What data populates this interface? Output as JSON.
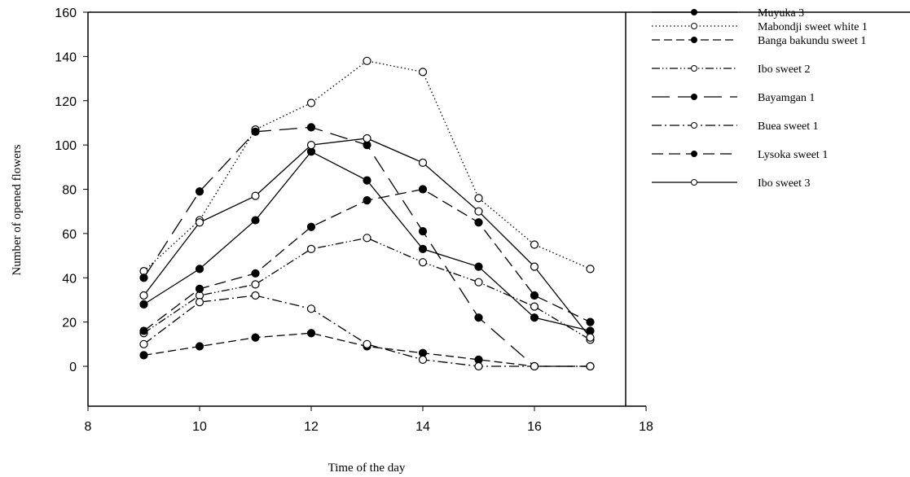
{
  "chart_data": {
    "type": "line",
    "title": "",
    "xlabel": "Time of the day",
    "ylabel": "Number of opened flowers",
    "xlim": [
      8,
      18
    ],
    "ylim": [
      -18,
      160
    ],
    "xticks": [
      8,
      10,
      12,
      14,
      16,
      18
    ],
    "yticks": [
      0,
      20,
      40,
      60,
      80,
      100,
      120,
      140,
      160
    ],
    "grid": false,
    "legend_position": "right",
    "x": [
      9,
      10,
      11,
      12,
      13,
      14,
      15,
      16,
      17
    ],
    "series": [
      {
        "name": "Muyuka 3",
        "line": "solid",
        "marker": "filled",
        "values": [
          28,
          44,
          66,
          97,
          84,
          53,
          45,
          22,
          16
        ]
      },
      {
        "name": "Mabondji sweet white 1",
        "line": "dotted",
        "marker": "open",
        "values": [
          43,
          66,
          107,
          119,
          138,
          133,
          76,
          55,
          44
        ]
      },
      {
        "name": "Banga bakundu sweet 1",
        "line": "dashed",
        "marker": "filled",
        "values": [
          5,
          9,
          13,
          15,
          9,
          6,
          3,
          0,
          0
        ]
      },
      {
        "name": "Ibo sweet 2",
        "line": "dash-dot-dot",
        "marker": "open",
        "values": [
          15,
          32,
          37,
          53,
          58,
          47,
          38,
          27,
          12
        ]
      },
      {
        "name": "Bayamgan 1",
        "line": "long-dash",
        "marker": "filled",
        "values": [
          40,
          79,
          106,
          108,
          100,
          61,
          22,
          0,
          0
        ]
      },
      {
        "name": "Buea sweet 1",
        "line": "dash-dot",
        "marker": "open",
        "values": [
          10,
          29,
          32,
          26,
          10,
          3,
          0,
          0,
          0
        ]
      },
      {
        "name": "Lysoka sweet 1",
        "line": "medium-dash",
        "marker": "filled",
        "values": [
          16,
          35,
          42,
          63,
          75,
          80,
          65,
          32,
          20
        ]
      },
      {
        "name": "Ibo sweet 3",
        "line": "solid",
        "marker": "open",
        "values": [
          32,
          65,
          77,
          100,
          103,
          92,
          70,
          45,
          13
        ]
      }
    ]
  }
}
